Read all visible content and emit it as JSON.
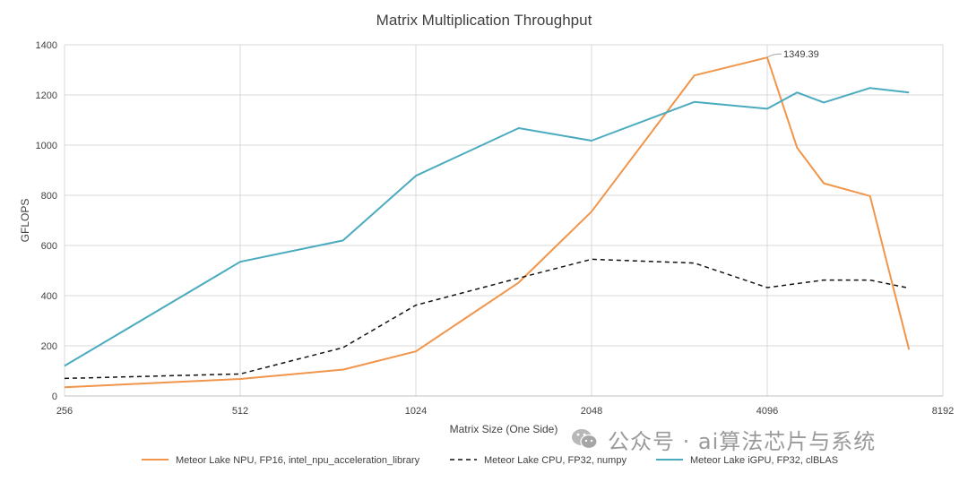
{
  "chart_data": {
    "type": "line",
    "title": "Matrix Multiplication Throughput",
    "xlabel": "Matrix Size (One Side)",
    "ylabel": "GFLOPS",
    "x_scale": "log2",
    "xlim": [
      256,
      8192
    ],
    "ylim": [
      0,
      1400
    ],
    "x_ticks": [
      256,
      512,
      1024,
      2048,
      4096,
      8192
    ],
    "x_tick_labels": [
      "256",
      "512",
      "1024",
      "2048",
      "4096",
      "8192"
    ],
    "y_ticks": [
      0,
      200,
      400,
      600,
      800,
      1000,
      1200,
      1400
    ],
    "y_tick_labels": [
      "0",
      "200",
      "400",
      "600",
      "800",
      "1000",
      "1200",
      "1400"
    ],
    "grid": true,
    "legend_position": "bottom",
    "series": [
      {
        "name": "Meteor Lake NPU, FP16, intel_npu_acceleration_library",
        "color": "#F0954A",
        "dash": "solid",
        "x": [
          256,
          512,
          768,
          1024,
          1536,
          2048,
          3072,
          4096,
          4608,
          5120,
          6144,
          7168
        ],
        "values": [
          35,
          68,
          105,
          178,
          452,
          735,
          1278,
          1349.39,
          990,
          848,
          797,
          185
        ]
      },
      {
        "name": "Meteor Lake CPU, FP32, numpy",
        "color": "#111111",
        "dash": "dashed",
        "x": [
          256,
          512,
          768,
          1024,
          1536,
          2048,
          3072,
          4096,
          5120,
          6144,
          7168
        ],
        "values": [
          70,
          88,
          193,
          362,
          470,
          545,
          530,
          432,
          462,
          462,
          430
        ]
      },
      {
        "name": "Meteor Lake iGPU, FP32, clBLAS",
        "color": "#4AABBF",
        "dash": "solid",
        "x": [
          256,
          512,
          768,
          1024,
          1536,
          2048,
          3072,
          4096,
          4608,
          5120,
          6144,
          7168
        ],
        "values": [
          120,
          535,
          620,
          878,
          1068,
          1018,
          1172,
          1145,
          1210,
          1170,
          1228,
          1210
        ]
      }
    ],
    "annotations": [
      {
        "series_index": 0,
        "x": 4096,
        "y": 1349.39,
        "text": "1349.39"
      }
    ]
  },
  "watermark": {
    "text": "公众号 · ai算法芯片与系统",
    "icon": "wechat-icon"
  }
}
